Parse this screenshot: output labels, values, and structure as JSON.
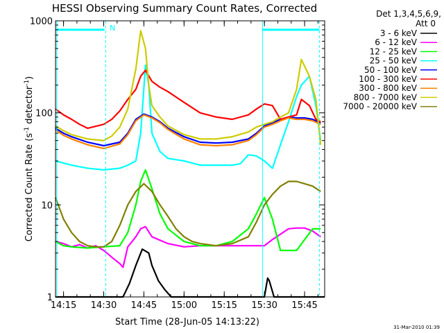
{
  "chart_data": {
    "type": "line",
    "title": "HESSI Observing Summary Count Rates, Corrected",
    "xlabel": "Start Time (28-Jun-05 14:13:22)",
    "ylabel_main": "Corrected Count Rate (s",
    "ylabel_sup1": "-1",
    "ylabel_mid": " detector",
    "ylabel_sup2": "-1",
    "ylabel_end": ")",
    "yscale": "log",
    "ylim": [
      1,
      1000
    ],
    "xlim_minutes": [
      14.2,
      15.875
    ],
    "x_tick_labels": [
      "14:15",
      "14:30",
      "14:45",
      "15:00",
      "15:15",
      "15:30",
      "15:45"
    ],
    "x_tick_values": [
      14.25,
      14.5,
      14.75,
      15.0,
      15.25,
      15.5,
      15.75
    ],
    "y_tick_labels": [
      "1",
      "10",
      "100",
      "1000"
    ],
    "y_tick_values": [
      1,
      10,
      100,
      1000
    ],
    "legend_header": [
      "Det 1,3,4,5,6,9,",
      "Att 0"
    ],
    "legend_position": "right",
    "flag_label": "N",
    "timestamp": "31-Mar-2010 01:39",
    "series": [
      {
        "name": "3 - 6 keV",
        "color": "#000000",
        "x": [
          14.2,
          14.3,
          14.4,
          14.5,
          14.6,
          14.62,
          14.66,
          14.7,
          14.74,
          14.78,
          14.8,
          14.84,
          14.88,
          14.92,
          14.96,
          15.0,
          15.1,
          15.2,
          15.3,
          15.4,
          15.5,
          15.52,
          15.53,
          15.56,
          15.875
        ],
        "y": [
          1,
          1,
          1,
          1,
          1,
          1,
          1.4,
          2.2,
          3.3,
          3.0,
          2.2,
          1.5,
          1.2,
          1,
          1,
          1,
          1,
          1,
          1,
          1,
          1,
          1.6,
          1.5,
          1,
          1
        ]
      },
      {
        "name": "6 - 12 keV",
        "color": "#ff00ff",
        "x": [
          14.2,
          14.25,
          14.3,
          14.35,
          14.4,
          14.45,
          14.5,
          14.52,
          14.55,
          14.6,
          14.62,
          14.65,
          14.7,
          14.73,
          14.76,
          14.8,
          14.9,
          15.0,
          15.1,
          15.2,
          15.3,
          15.4,
          15.5,
          15.55,
          15.6,
          15.65,
          15.7,
          15.75,
          15.8,
          15.85
        ],
        "y": [
          4.0,
          3.8,
          3.5,
          3.7,
          3.4,
          3.6,
          3.2,
          3.0,
          2.7,
          2.3,
          2.1,
          3.5,
          4.5,
          5.5,
          5.8,
          4.5,
          3.8,
          3.5,
          3.6,
          3.6,
          3.6,
          3.6,
          3.6,
          4.2,
          4.8,
          5.5,
          5.6,
          5.6,
          5.2,
          4.5
        ]
      },
      {
        "name": "12 - 25 keV",
        "color": "#00ff00",
        "x": [
          14.2,
          14.25,
          14.3,
          14.4,
          14.5,
          14.6,
          14.65,
          14.7,
          14.73,
          14.76,
          14.8,
          14.85,
          14.9,
          15.0,
          15.1,
          15.2,
          15.3,
          15.4,
          15.45,
          15.5,
          15.55,
          15.6,
          15.7,
          15.8,
          15.85
        ],
        "y": [
          4.0,
          3.6,
          3.5,
          3.4,
          3.5,
          3.6,
          5.0,
          10,
          18,
          24,
          15,
          8,
          5.5,
          4.0,
          3.6,
          3.6,
          4.0,
          5.5,
          8,
          12,
          7,
          3.2,
          3.2,
          5.5,
          5.5
        ]
      },
      {
        "name": "25 - 50 keV",
        "color": "#00ffff",
        "x": [
          14.2,
          14.3,
          14.4,
          14.5,
          14.6,
          14.65,
          14.7,
          14.73,
          14.76,
          14.78,
          14.8,
          14.85,
          14.9,
          15.0,
          15.1,
          15.2,
          15.3,
          15.35,
          15.4,
          15.45,
          15.5,
          15.55,
          15.6,
          15.65,
          15.7,
          15.73,
          15.78,
          15.82,
          15.85
        ],
        "y": [
          30,
          27,
          25,
          24,
          25,
          27,
          30,
          60,
          330,
          200,
          60,
          38,
          32,
          30,
          27,
          27,
          27,
          28,
          35,
          34,
          30,
          25,
          45,
          80,
          150,
          200,
          250,
          120,
          50
        ]
      },
      {
        "name": "50 - 100 keV",
        "color": "#0000ff",
        "x": [
          14.2,
          14.25,
          14.3,
          14.4,
          14.5,
          14.6,
          14.65,
          14.7,
          14.75,
          14.8,
          14.85,
          14.9,
          15.0,
          15.1,
          15.2,
          15.3,
          15.4,
          15.45,
          15.5,
          15.55,
          15.6,
          15.65,
          15.7,
          15.75,
          15.8,
          15.85
        ],
        "y": [
          68,
          60,
          55,
          48,
          44,
          48,
          60,
          85,
          97,
          90,
          80,
          68,
          55,
          48,
          47,
          48,
          52,
          60,
          72,
          78,
          85,
          90,
          88,
          88,
          85,
          78
        ]
      },
      {
        "name": "100 - 300 keV",
        "color": "#ff0000",
        "x": [
          14.2,
          14.25,
          14.3,
          14.35,
          14.4,
          14.5,
          14.55,
          14.6,
          14.65,
          14.7,
          14.73,
          14.76,
          14.8,
          14.85,
          14.9,
          15.0,
          15.1,
          15.2,
          15.3,
          15.4,
          15.45,
          15.5,
          15.55,
          15.6,
          15.65,
          15.7,
          15.73,
          15.78,
          15.82,
          15.85
        ],
        "y": [
          110,
          95,
          85,
          75,
          68,
          75,
          85,
          105,
          140,
          180,
          250,
          290,
          220,
          190,
          170,
          130,
          100,
          90,
          85,
          95,
          110,
          125,
          120,
          85,
          90,
          95,
          140,
          120,
          85,
          80
        ]
      },
      {
        "name": "300 - 800 keV",
        "color": "#ff8000",
        "x": [
          14.2,
          14.25,
          14.3,
          14.4,
          14.5,
          14.6,
          14.65,
          14.7,
          14.75,
          14.8,
          14.85,
          14.9,
          15.0,
          15.1,
          15.2,
          15.3,
          15.4,
          15.45,
          15.5,
          15.55,
          15.6,
          15.65,
          15.7,
          15.75,
          15.8,
          15.85
        ],
        "y": [
          65,
          57,
          52,
          45,
          41,
          46,
          58,
          82,
          95,
          88,
          78,
          66,
          52,
          45,
          44,
          45,
          50,
          58,
          70,
          75,
          82,
          88,
          85,
          85,
          82,
          75
        ]
      },
      {
        "name": "800 - 7000 keV",
        "color": "#cccc00",
        "x": [
          14.2,
          14.25,
          14.3,
          14.4,
          14.5,
          14.55,
          14.6,
          14.65,
          14.7,
          14.73,
          14.76,
          14.78,
          14.8,
          14.85,
          14.9,
          15.0,
          15.1,
          15.2,
          15.3,
          15.4,
          15.45,
          15.5,
          15.55,
          15.6,
          15.65,
          15.7,
          15.73,
          15.78,
          15.82,
          15.85
        ],
        "y": [
          72,
          64,
          58,
          52,
          50,
          56,
          70,
          110,
          300,
          780,
          500,
          200,
          120,
          90,
          72,
          58,
          52,
          52,
          55,
          62,
          70,
          75,
          80,
          90,
          100,
          180,
          380,
          250,
          140,
          45
        ]
      },
      {
        "name": "7000 - 20000 keV",
        "color": "#808000",
        "x": [
          14.2,
          14.25,
          14.3,
          14.35,
          14.4,
          14.45,
          14.5,
          14.55,
          14.6,
          14.65,
          14.7,
          14.75,
          14.8,
          14.85,
          14.9,
          14.95,
          15.0,
          15.05,
          15.1,
          15.2,
          15.3,
          15.4,
          15.45,
          15.5,
          15.55,
          15.6,
          15.65,
          15.7,
          15.75,
          15.8,
          15.85
        ],
        "y": [
          12,
          7,
          5,
          4,
          3.6,
          3.5,
          3.5,
          4,
          6,
          10,
          14,
          17,
          14,
          10,
          7.5,
          5.5,
          4.5,
          4,
          3.8,
          3.6,
          3.8,
          4.5,
          6.5,
          10,
          13,
          16,
          18,
          18,
          17,
          16,
          14
        ]
      }
    ],
    "vertical_markers": [
      {
        "x": 14.208,
        "color": "#00ffff",
        "style": "solid"
      },
      {
        "x": 14.512,
        "color": "#00ffff",
        "style": "dashed"
      },
      {
        "x": 15.488,
        "color": "#00ffff",
        "style": "solid"
      },
      {
        "x": 15.842,
        "color": "#00ffff",
        "style": "dashed"
      }
    ],
    "horizontal_flags": [
      {
        "x1": 14.208,
        "x2": 14.505,
        "y": 800,
        "color": "#00ffff"
      },
      {
        "x1": 15.488,
        "x2": 15.842,
        "y": 800,
        "color": "#00ffff"
      }
    ]
  }
}
